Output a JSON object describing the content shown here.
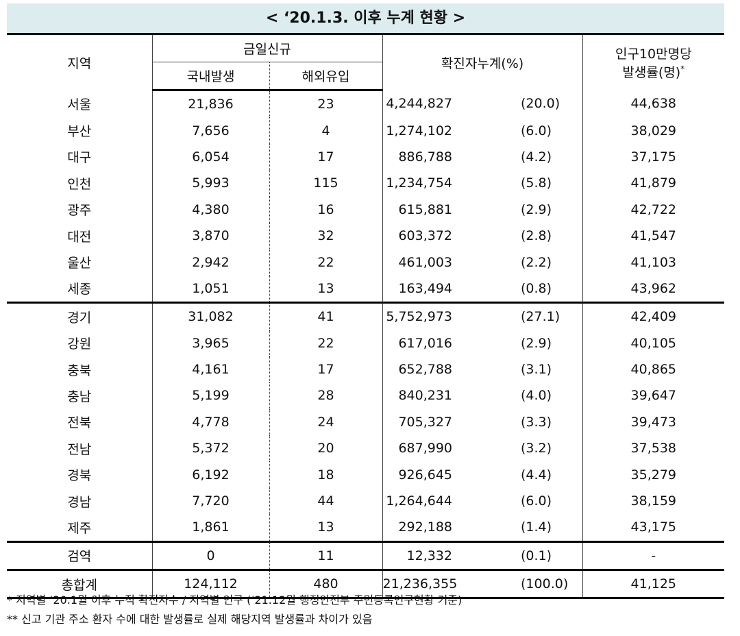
{
  "title": "< ‘20.1.3. 이후 누계 현황 >",
  "header": {
    "region": "지역",
    "today_new": "금일신규",
    "domestic": "국내발생",
    "overseas": "해외유입",
    "cumulative": "확진자누계(%)",
    "rate_line1": "인구10만명당",
    "rate_line2": "발생률(명)",
    "rate_mark": "*"
  },
  "table": {
    "rows": [
      [
        "서울",
        "21,836",
        "23",
        "4,244,827",
        "(20.0)",
        "44,638"
      ],
      [
        "부산",
        "7,656",
        "4",
        "1,274,102",
        "(6.0)",
        "38,029"
      ],
      [
        "대구",
        "6,054",
        "17",
        "886,788",
        "(4.2)",
        "37,175"
      ],
      [
        "인천",
        "5,993",
        "115",
        "1,234,754",
        "(5.8)",
        "41,879"
      ],
      [
        "광주",
        "4,380",
        "16",
        "615,881",
        "(2.9)",
        "42,722"
      ],
      [
        "대전",
        "3,870",
        "32",
        "603,372",
        "(2.8)",
        "41,547"
      ],
      [
        "울산",
        "2,942",
        "22",
        "461,003",
        "(2.2)",
        "41,103"
      ],
      [
        "세종",
        "1,051",
        "13",
        "163,494",
        "(0.8)",
        "43,962"
      ],
      [
        "경기",
        "31,082",
        "41",
        "5,752,973",
        "(27.1)",
        "42,409"
      ],
      [
        "강원",
        "3,965",
        "22",
        "617,016",
        "(2.9)",
        "40,105"
      ],
      [
        "충북",
        "4,161",
        "17",
        "652,788",
        "(3.1)",
        "40,865"
      ],
      [
        "충남",
        "5,199",
        "28",
        "840,231",
        "(4.0)",
        "39,647"
      ],
      [
        "전북",
        "4,778",
        "24",
        "705,327",
        "(3.3)",
        "39,473"
      ],
      [
        "전남",
        "5,372",
        "20",
        "687,990",
        "(3.2)",
        "37,538"
      ],
      [
        "경북",
        "6,192",
        "18",
        "926,645",
        "(4.4)",
        "35,279"
      ],
      [
        "경남",
        "7,720",
        "44",
        "1,264,644",
        "(6.0)",
        "38,159"
      ],
      [
        "제주",
        "1,861",
        "13",
        "292,188",
        "(1.4)",
        "43,175"
      ],
      [
        "검역",
        "0",
        "11",
        "12,332",
        "(0.1)",
        "-"
      ],
      [
        "총합계",
        "124,112",
        "480",
        "21,236,355",
        "(100.0)",
        "41,125"
      ]
    ]
  },
  "footnotes": [
    "* 지역별 ‘20.1월 이후 누적 확진자수 / 지역별 인구 (‘21.12월 행정안전부 주민등록인구현황 기준)",
    "** 신고 기관 주소 환자 수에 대한 발생률로 실제 해당지역 발생률과 차이가 있음"
  ]
}
